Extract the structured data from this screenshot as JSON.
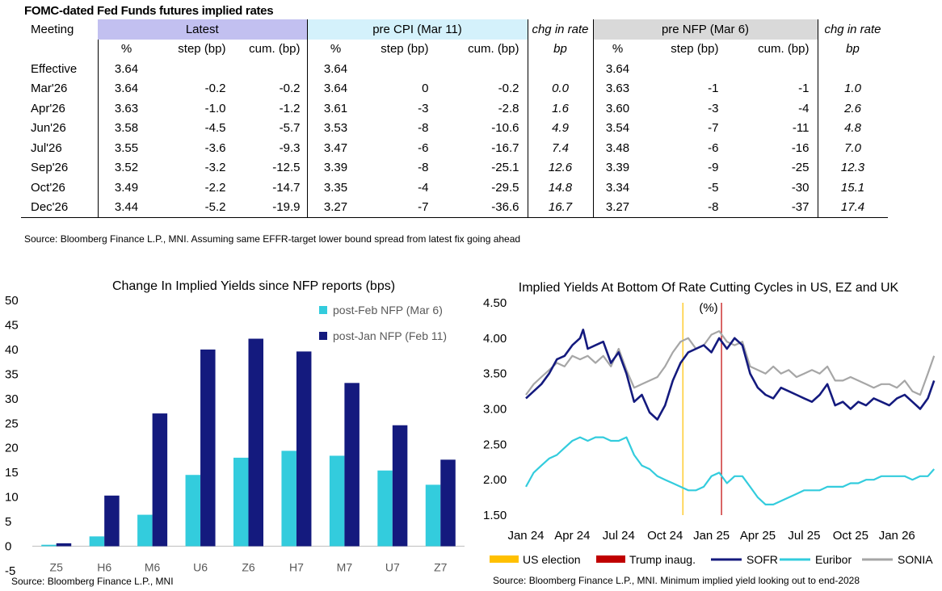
{
  "table": {
    "title": "FOMC-dated Fed Funds futures implied rates",
    "col_meeting": "Meeting",
    "group_latest": "Latest",
    "group_pre_cpi": "pre CPI (Mar 11)",
    "group_chg1": "chg in rate",
    "group_pre_nfp": "pre NFP (Mar 6)",
    "group_chg2": "chg in rate",
    "sub_pct": "%",
    "sub_step": "step (bp)",
    "sub_cum": "cum. (bp)",
    "sub_bp": "bp",
    "rows": [
      {
        "meeting": "Effective",
        "l_pct": "3.64",
        "l_step": "",
        "l_cum": "",
        "c_pct": "3.64",
        "c_step": "",
        "c_cum": "",
        "chg1": "",
        "n_pct": "3.64",
        "n_step": "",
        "n_cum": "",
        "chg2": ""
      },
      {
        "meeting": "Mar'26",
        "l_pct": "3.64",
        "l_step": "-0.2",
        "l_cum": "-0.2",
        "c_pct": "3.64",
        "c_step": "0",
        "c_cum": "-0.2",
        "chg1": "0.0",
        "n_pct": "3.63",
        "n_step": "-1",
        "n_cum": "-1",
        "chg2": "1.0"
      },
      {
        "meeting": "Apr'26",
        "l_pct": "3.63",
        "l_step": "-1.0",
        "l_cum": "-1.2",
        "c_pct": "3.61",
        "c_step": "-3",
        "c_cum": "-2.8",
        "chg1": "1.6",
        "n_pct": "3.60",
        "n_step": "-3",
        "n_cum": "-4",
        "chg2": "2.6"
      },
      {
        "meeting": "Jun'26",
        "l_pct": "3.58",
        "l_step": "-4.5",
        "l_cum": "-5.7",
        "c_pct": "3.53",
        "c_step": "-8",
        "c_cum": "-10.6",
        "chg1": "4.9",
        "n_pct": "3.54",
        "n_step": "-7",
        "n_cum": "-11",
        "chg2": "4.8"
      },
      {
        "meeting": "Jul'26",
        "l_pct": "3.55",
        "l_step": "-3.6",
        "l_cum": "-9.3",
        "c_pct": "3.47",
        "c_step": "-6",
        "c_cum": "-16.7",
        "chg1": "7.4",
        "n_pct": "3.48",
        "n_step": "-6",
        "n_cum": "-16",
        "chg2": "7.0"
      },
      {
        "meeting": "Sep'26",
        "l_pct": "3.52",
        "l_step": "-3.2",
        "l_cum": "-12.5",
        "c_pct": "3.39",
        "c_step": "-8",
        "c_cum": "-25.1",
        "chg1": "12.6",
        "n_pct": "3.39",
        "n_step": "-9",
        "n_cum": "-25",
        "chg2": "12.3"
      },
      {
        "meeting": "Oct'26",
        "l_pct": "3.49",
        "l_step": "-2.2",
        "l_cum": "-14.7",
        "c_pct": "3.35",
        "c_step": "-4",
        "c_cum": "-29.5",
        "chg1": "14.8",
        "n_pct": "3.34",
        "n_step": "-5",
        "n_cum": "-30",
        "chg2": "15.1"
      },
      {
        "meeting": "Dec'26",
        "l_pct": "3.44",
        "l_step": "-5.2",
        "l_cum": "-19.9",
        "c_pct": "3.27",
        "c_step": "-7",
        "c_cum": "-36.6",
        "chg1": "16.7",
        "n_pct": "3.27",
        "n_step": "-8",
        "n_cum": "-37",
        "chg2": "17.4"
      }
    ],
    "source": "Source: Bloomberg Finance L.P., MNI. Assuming same  EFFR-target lower bound spread from latest fix going ahead"
  },
  "chart_data": [
    {
      "type": "bar",
      "title": "Change In Implied Yields since NFP reports (bps)",
      "categories": [
        "Z5",
        "H6",
        "M6",
        "U6",
        "Z6",
        "H7",
        "M7",
        "U7",
        "Z7"
      ],
      "series": [
        {
          "name": "post-Feb NFP (Mar 6)",
          "color": "#33ccdd",
          "values": [
            0.3,
            2,
            6.4,
            14.5,
            18,
            19.4,
            18.4,
            15.4,
            12.5
          ]
        },
        {
          "name": "post-Jan NFP (Feb 11)",
          "color": "#141a7e",
          "values": [
            0.6,
            10.3,
            27,
            40,
            42.2,
            39.6,
            33.2,
            24.6,
            17.6
          ]
        }
      ],
      "ylim": [
        -5,
        50
      ],
      "yticks": [
        -5,
        0,
        5,
        10,
        15,
        20,
        25,
        30,
        35,
        40,
        45,
        50
      ],
      "legend": "top-right",
      "source": "Source: Bloomberg Finance L.P., MNI"
    },
    {
      "type": "line",
      "title": "Implied Yields At Bottom Of Rate Cutting Cycles in US, EZ and UK",
      "unit_label": "(%)",
      "ylim": [
        1.5,
        4.5
      ],
      "yticks": [
        "1.50",
        "2.00",
        "2.50",
        "3.00",
        "3.50",
        "4.00",
        "4.50"
      ],
      "xticks": [
        "Jan 24",
        "Apr 24",
        "Jul 24",
        "Oct 24",
        "Jan 25",
        "Apr 25",
        "Jul 25",
        "Oct 25",
        "Jan 26"
      ],
      "x_range_months": [
        0,
        26.6
      ],
      "vlines": [
        {
          "name": "US election",
          "color": "#ffc000",
          "x_month": 10.15
        },
        {
          "name": "Trump inaug.",
          "color": "#c00000",
          "x_month": 12.65
        }
      ],
      "series": [
        {
          "name": "SOFR",
          "color": "#141a7e",
          "points": [
            [
              0,
              3.15
            ],
            [
              0.5,
              3.25
            ],
            [
              1,
              3.35
            ],
            [
              1.5,
              3.5
            ],
            [
              2,
              3.7
            ],
            [
              2.5,
              3.75
            ],
            [
              3,
              3.9
            ],
            [
              3.5,
              4.0
            ],
            [
              3.7,
              4.12
            ],
            [
              4,
              3.85
            ],
            [
              4.5,
              3.9
            ],
            [
              5,
              3.95
            ],
            [
              5.5,
              3.65
            ],
            [
              6,
              3.8
            ],
            [
              6.5,
              3.5
            ],
            [
              7,
              3.1
            ],
            [
              7.5,
              3.2
            ],
            [
              8,
              2.95
            ],
            [
              8.5,
              2.85
            ],
            [
              9,
              3.05
            ],
            [
              9.5,
              3.4
            ],
            [
              10,
              3.65
            ],
            [
              10.5,
              3.8
            ],
            [
              11,
              3.85
            ],
            [
              11.5,
              3.9
            ],
            [
              12,
              3.8
            ],
            [
              12.5,
              4.0
            ],
            [
              13,
              3.85
            ],
            [
              13.5,
              4.0
            ],
            [
              14,
              3.9
            ],
            [
              14.5,
              3.5
            ],
            [
              15,
              3.3
            ],
            [
              15.5,
              3.2
            ],
            [
              16,
              3.15
            ],
            [
              16.5,
              3.3
            ],
            [
              17,
              3.25
            ],
            [
              17.5,
              3.2
            ],
            [
              18,
              3.15
            ],
            [
              18.5,
              3.1
            ],
            [
              19,
              3.2
            ],
            [
              19.5,
              3.35
            ],
            [
              20,
              3.05
            ],
            [
              20.5,
              3.1
            ],
            [
              21,
              3.0
            ],
            [
              21.5,
              3.1
            ],
            [
              22,
              3.05
            ],
            [
              22.5,
              3.15
            ],
            [
              23,
              3.1
            ],
            [
              23.5,
              3.05
            ],
            [
              24,
              3.15
            ],
            [
              24.5,
              3.2
            ],
            [
              25,
              3.1
            ],
            [
              25.5,
              3.0
            ],
            [
              26,
              3.15
            ],
            [
              26.4,
              3.4
            ]
          ]
        },
        {
          "name": "Euribor",
          "color": "#33ccdd",
          "points": [
            [
              0,
              1.9
            ],
            [
              0.5,
              2.1
            ],
            [
              1,
              2.2
            ],
            [
              1.5,
              2.3
            ],
            [
              2,
              2.35
            ],
            [
              2.5,
              2.45
            ],
            [
              3,
              2.55
            ],
            [
              3.5,
              2.6
            ],
            [
              4,
              2.55
            ],
            [
              4.5,
              2.6
            ],
            [
              5,
              2.6
            ],
            [
              5.5,
              2.55
            ],
            [
              6,
              2.55
            ],
            [
              6.5,
              2.6
            ],
            [
              7,
              2.35
            ],
            [
              7.5,
              2.2
            ],
            [
              8,
              2.15
            ],
            [
              8.5,
              2.05
            ],
            [
              9,
              2.0
            ],
            [
              9.5,
              1.95
            ],
            [
              10,
              1.9
            ],
            [
              10.5,
              1.85
            ],
            [
              11,
              1.85
            ],
            [
              11.5,
              1.9
            ],
            [
              12,
              2.05
            ],
            [
              12.5,
              2.1
            ],
            [
              13,
              1.95
            ],
            [
              13.5,
              2.05
            ],
            [
              14,
              2.05
            ],
            [
              14.5,
              1.9
            ],
            [
              15,
              1.75
            ],
            [
              15.5,
              1.65
            ],
            [
              16,
              1.65
            ],
            [
              16.5,
              1.7
            ],
            [
              17,
              1.75
            ],
            [
              17.5,
              1.8
            ],
            [
              18,
              1.85
            ],
            [
              18.5,
              1.85
            ],
            [
              19,
              1.85
            ],
            [
              19.5,
              1.9
            ],
            [
              20,
              1.9
            ],
            [
              20.5,
              1.9
            ],
            [
              21,
              1.95
            ],
            [
              21.5,
              1.95
            ],
            [
              22,
              2.0
            ],
            [
              22.5,
              2.0
            ],
            [
              23,
              2.05
            ],
            [
              23.5,
              2.05
            ],
            [
              24,
              2.05
            ],
            [
              24.5,
              2.05
            ],
            [
              25,
              2.0
            ],
            [
              25.5,
              2.05
            ],
            [
              26,
              2.05
            ],
            [
              26.4,
              2.15
            ]
          ]
        },
        {
          "name": "SONIA",
          "color": "#a6a6a6",
          "points": [
            [
              0,
              3.2
            ],
            [
              0.5,
              3.35
            ],
            [
              1,
              3.45
            ],
            [
              1.5,
              3.55
            ],
            [
              2,
              3.65
            ],
            [
              2.5,
              3.6
            ],
            [
              3,
              3.75
            ],
            [
              3.5,
              3.7
            ],
            [
              4,
              3.75
            ],
            [
              4.5,
              3.65
            ],
            [
              5,
              3.75
            ],
            [
              5.5,
              3.6
            ],
            [
              6,
              3.85
            ],
            [
              6.5,
              3.55
            ],
            [
              7,
              3.3
            ],
            [
              7.5,
              3.35
            ],
            [
              8,
              3.4
            ],
            [
              8.5,
              3.45
            ],
            [
              9,
              3.6
            ],
            [
              9.5,
              3.8
            ],
            [
              10,
              3.95
            ],
            [
              10.5,
              4.0
            ],
            [
              11,
              3.85
            ],
            [
              11.5,
              3.9
            ],
            [
              12,
              4.05
            ],
            [
              12.5,
              4.1
            ],
            [
              13,
              3.95
            ],
            [
              13.5,
              3.9
            ],
            [
              14,
              3.95
            ],
            [
              14.5,
              3.6
            ],
            [
              15,
              3.55
            ],
            [
              15.5,
              3.5
            ],
            [
              16,
              3.6
            ],
            [
              16.5,
              3.5
            ],
            [
              17,
              3.55
            ],
            [
              17.5,
              3.45
            ],
            [
              18,
              3.5
            ],
            [
              18.5,
              3.55
            ],
            [
              19,
              3.5
            ],
            [
              19.5,
              3.6
            ],
            [
              20,
              3.4
            ],
            [
              20.5,
              3.4
            ],
            [
              21,
              3.45
            ],
            [
              21.5,
              3.4
            ],
            [
              22,
              3.35
            ],
            [
              22.5,
              3.3
            ],
            [
              23,
              3.35
            ],
            [
              23.5,
              3.35
            ],
            [
              24,
              3.3
            ],
            [
              24.5,
              3.4
            ],
            [
              25,
              3.25
            ],
            [
              25.5,
              3.2
            ],
            [
              26,
              3.5
            ],
            [
              26.4,
              3.75
            ]
          ]
        }
      ],
      "legend": "bottom",
      "source": "Source: Bloomberg Finance L.P., MNI. Minimum implied yield looking out to end-2028"
    }
  ]
}
